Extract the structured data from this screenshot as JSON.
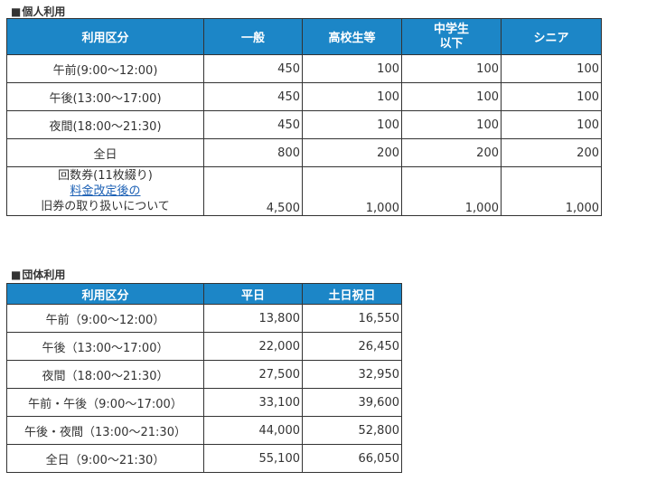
{
  "individual": {
    "title_mark": "■",
    "title": "個人利用",
    "headers": [
      "利用区分",
      "一般",
      "高校生等",
      "中学生\n以下",
      "シニア"
    ],
    "header_line1": "中学生",
    "header_line2": "以下",
    "rows": [
      {
        "label": "午前(9:00～12:00)",
        "values": [
          "450",
          "100",
          "100",
          "100"
        ]
      },
      {
        "label": "午後(13:00～17:00)",
        "values": [
          "450",
          "100",
          "100",
          "100"
        ]
      },
      {
        "label": "夜間(18:00～21:30)",
        "values": [
          "450",
          "100",
          "100",
          "100"
        ]
      },
      {
        "label": "全日",
        "values": [
          "800",
          "200",
          "200",
          "200"
        ]
      }
    ],
    "coupon": {
      "line1": "回数券(11枚綴り)",
      "link": "料金改定後の",
      "line3": "旧券の取り扱いについて",
      "values": [
        "4,500",
        "1,000",
        "1,000",
        "1,000"
      ]
    }
  },
  "group": {
    "title_mark": "■",
    "title": "団体利用",
    "headers": [
      "利用区分",
      "平日",
      "土日祝日"
    ],
    "rows": [
      {
        "label": "午前（9:00～12:00）",
        "values": [
          "13,800",
          "16,550"
        ]
      },
      {
        "label": "午後（13:00～17:00）",
        "values": [
          "22,000",
          "26,450"
        ]
      },
      {
        "label": "夜間（18:00～21:30）",
        "values": [
          "27,500",
          "32,950"
        ]
      },
      {
        "label": "午前・午後（9:00～17:00）",
        "values": [
          "33,100",
          "39,600"
        ]
      },
      {
        "label": "午後・夜間（13:00～21:30）",
        "values": [
          "44,000",
          "52,800"
        ]
      },
      {
        "label": "全日（9:00～21:30）",
        "values": [
          "55,100",
          "66,050"
        ]
      }
    ]
  }
}
